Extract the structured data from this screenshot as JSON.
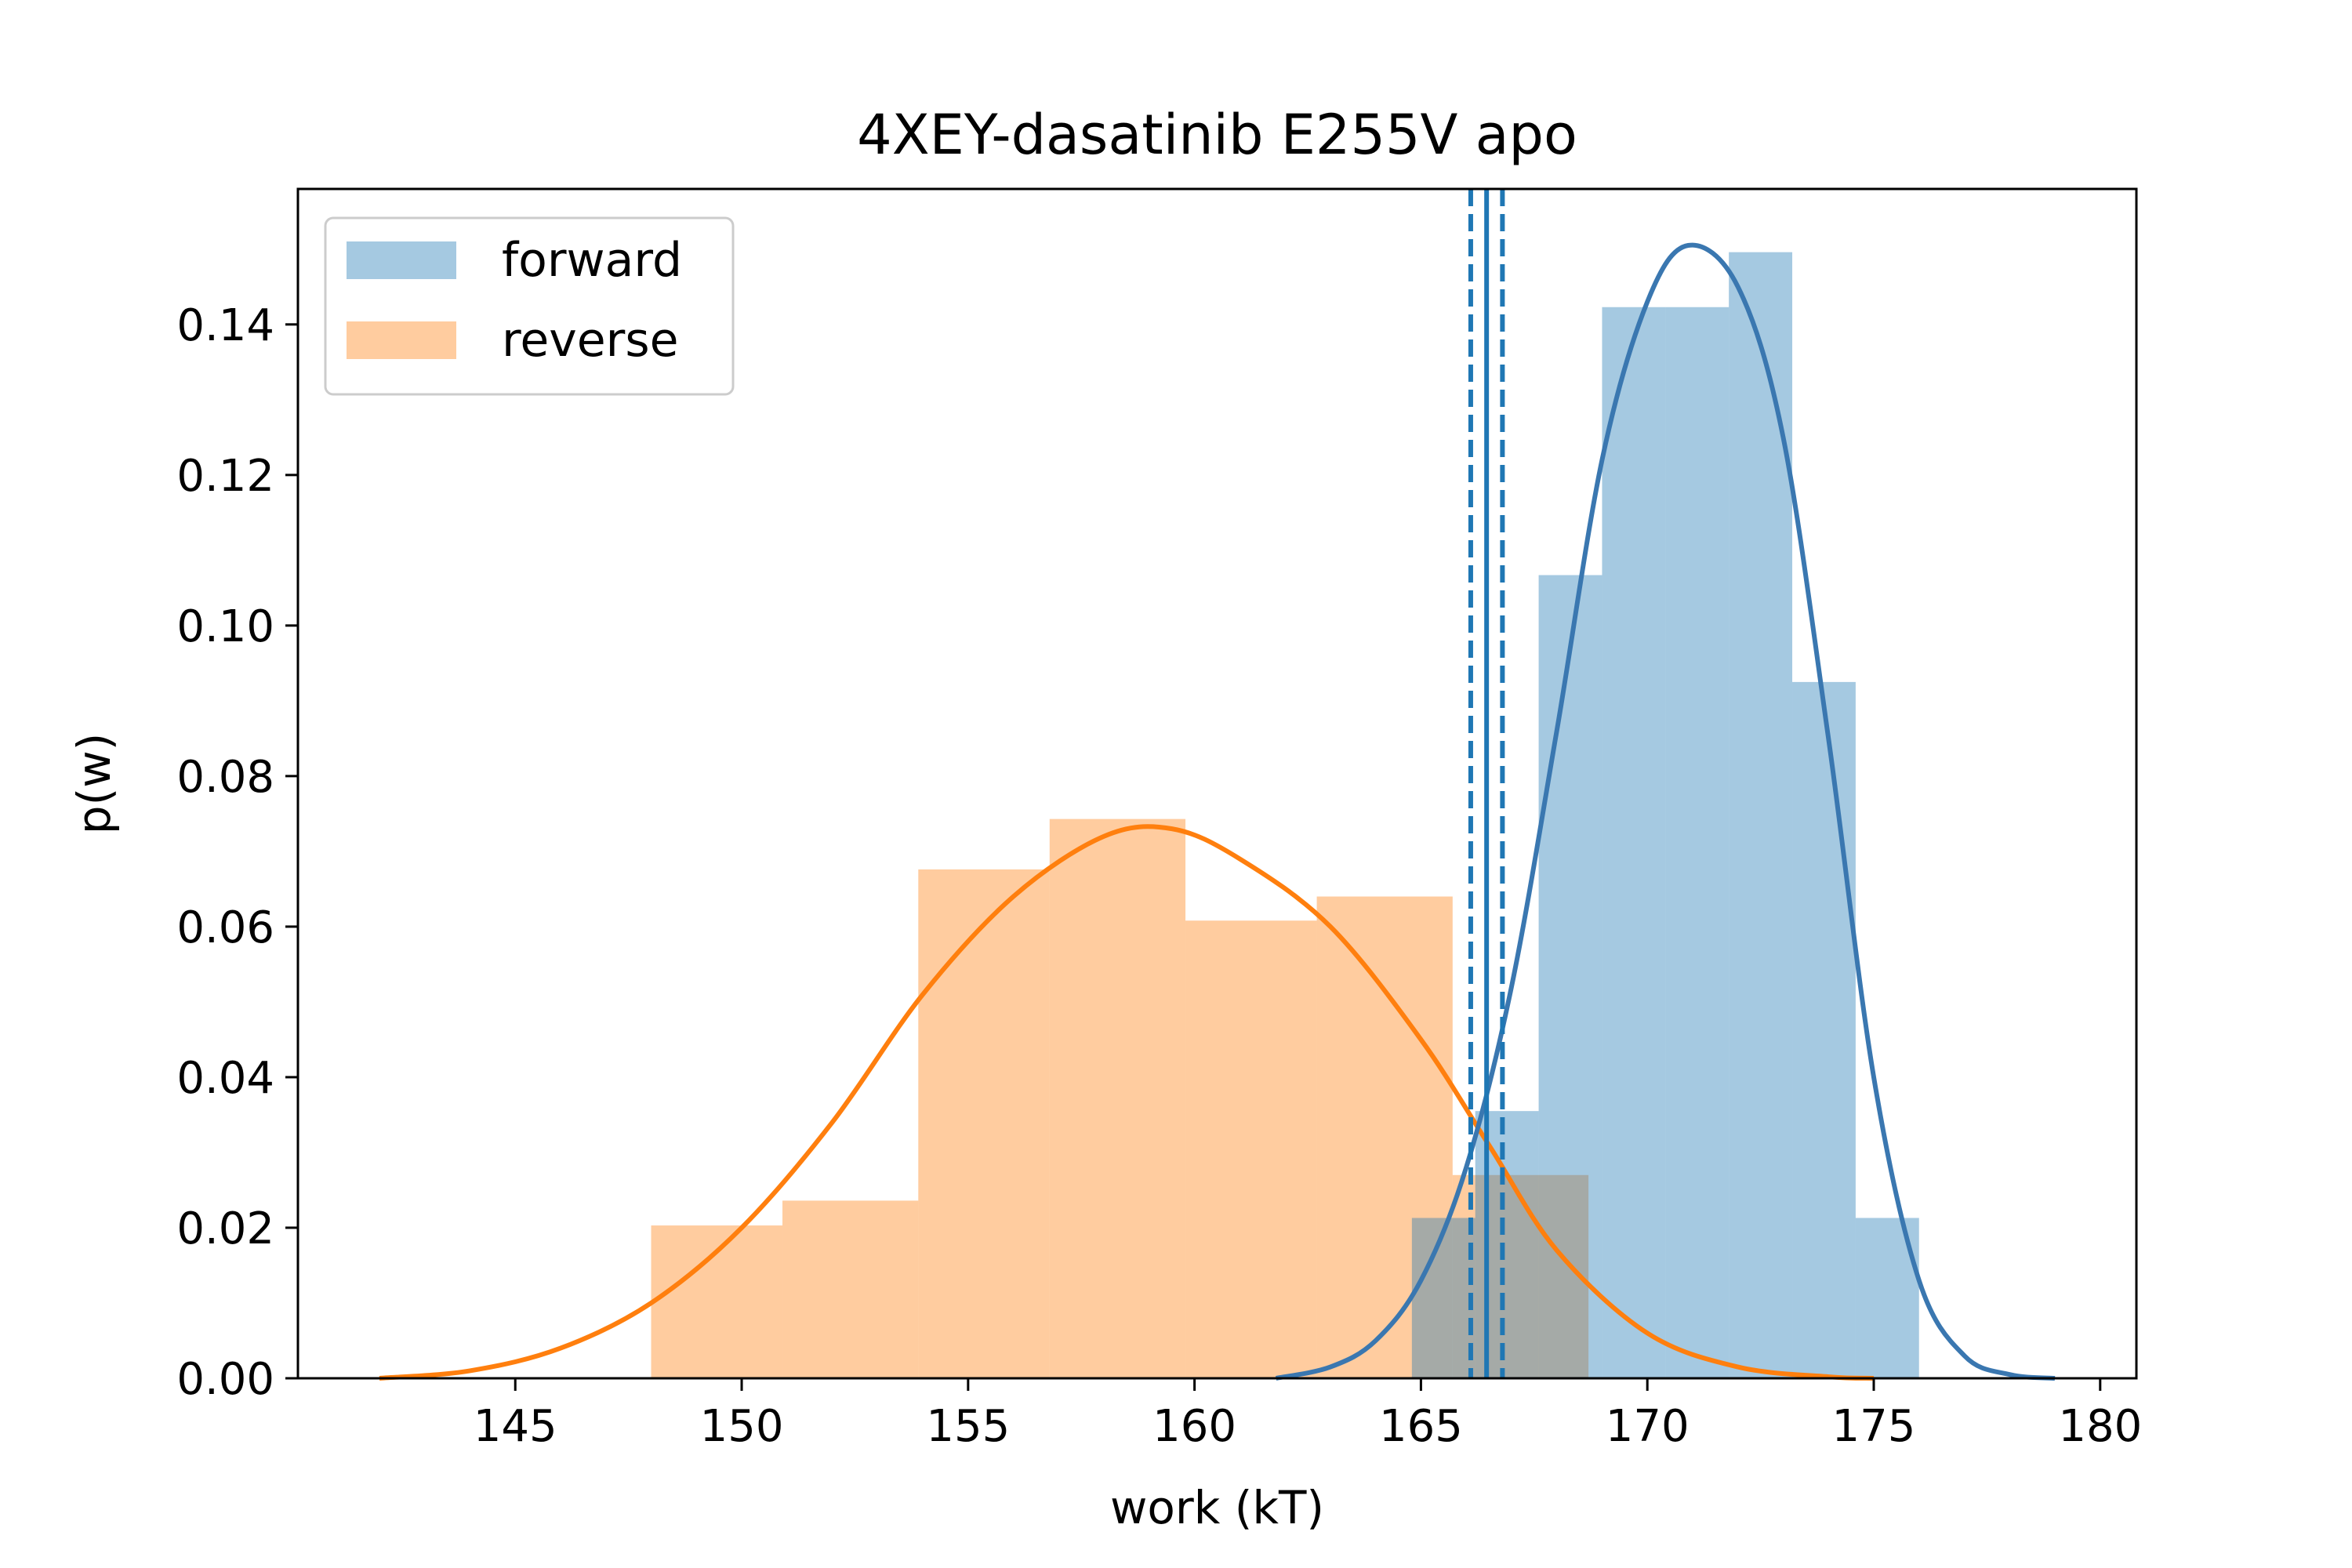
{
  "chart_data": {
    "type": "bar",
    "title": "4XEY-dasatinib E255V apo",
    "xlabel": "work (kT)",
    "ylabel": "p(w)",
    "xlim": [
      140.2,
      180.8
    ],
    "ylim": [
      0,
      0.158
    ],
    "xticks": [
      145,
      150,
      155,
      160,
      165,
      170,
      175,
      180
    ],
    "yticks": [
      0.0,
      0.02,
      0.04,
      0.06,
      0.08,
      0.1,
      0.12,
      0.14
    ],
    "ytick_labels": [
      "0.00",
      "0.02",
      "0.04",
      "0.06",
      "0.08",
      "0.10",
      "0.12",
      "0.14"
    ],
    "grid": false,
    "legend_position": "top-left",
    "colors": {
      "forward_fill": "#1f77b4",
      "reverse_fill": "#ff7f0e",
      "forward_line": "#3a77b0",
      "reverse_line": "#ff7f0e"
    },
    "series": [
      {
        "name": "forward",
        "histogram": {
          "bin_edges": [
            164.8,
            166.2,
            167.6,
            169.0,
            170.4,
            171.8,
            173.2,
            174.6,
            176.0
          ],
          "density": [
            0.0213,
            0.0355,
            0.1067,
            0.1423,
            0.1423,
            0.1496,
            0.0925,
            0.0213
          ]
        },
        "kde": {
          "x": [
            161.8,
            163.0,
            164.0,
            165.0,
            166.0,
            167.0,
            168.0,
            169.0,
            170.0,
            170.9,
            172.0,
            173.0,
            174.0,
            175.0,
            176.0,
            177.0,
            178.0,
            179.0
          ],
          "y": [
            0.0,
            0.0015,
            0.005,
            0.013,
            0.028,
            0.052,
            0.086,
            0.122,
            0.143,
            0.1505,
            0.145,
            0.125,
            0.085,
            0.04,
            0.013,
            0.003,
            0.0005,
            0.0
          ]
        },
        "mean_line": 166.45,
        "ci_lines": [
          166.1,
          166.8
        ]
      },
      {
        "name": "reverse",
        "histogram": {
          "bin_edges": [
            148.0,
            150.9,
            153.9,
            156.8,
            159.8,
            162.7,
            165.7,
            168.7
          ],
          "density": [
            0.0203,
            0.0236,
            0.0676,
            0.0743,
            0.0608,
            0.064,
            0.027
          ]
        },
        "kde": {
          "x": [
            142.0,
            144.0,
            146.0,
            148.0,
            150.0,
            152.0,
            154.0,
            156.0,
            158.0,
            159.5,
            161.0,
            163.0,
            165.0,
            166.5,
            168.0,
            170.0,
            172.0,
            174.0,
            175.0
          ],
          "y": [
            0.0,
            0.001,
            0.004,
            0.01,
            0.02,
            0.034,
            0.051,
            0.064,
            0.072,
            0.073,
            0.069,
            0.06,
            0.045,
            0.031,
            0.017,
            0.006,
            0.0015,
            0.0002,
            0.0
          ]
        }
      }
    ]
  }
}
